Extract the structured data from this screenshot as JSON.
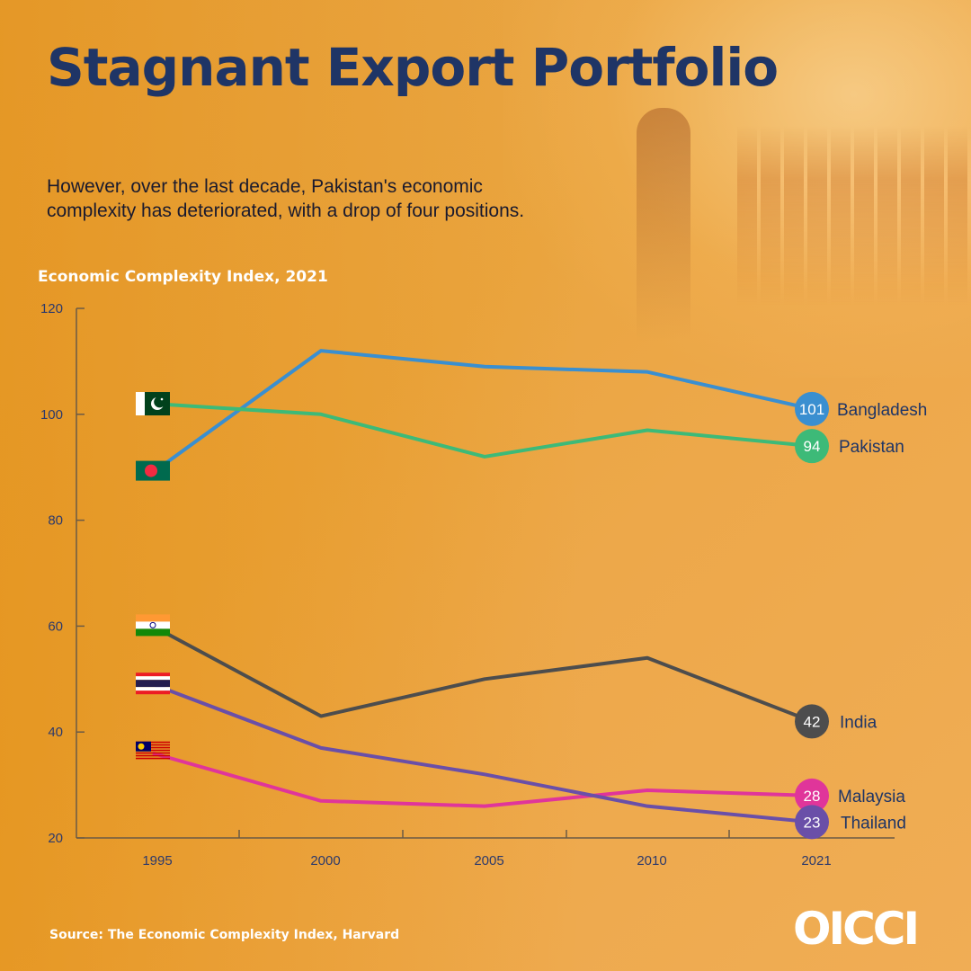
{
  "header": {
    "title": "Stagnant Export Portfolio",
    "subtitle_line1": "However, over the last decade, Pakistan's economic",
    "subtitle_line2": "complexity has deteriorated, with a drop of four positions."
  },
  "footer": {
    "source": "Source: The Economic Complexity Index, Harvard",
    "logo": "OICCI"
  },
  "chart_data": {
    "type": "line",
    "title": "Economic Complexity Index, 2021",
    "xlabel": "",
    "ylabel": "",
    "categories": [
      "1995",
      "2000",
      "2005",
      "2010",
      "2021"
    ],
    "ylim": [
      20,
      120
    ],
    "yticks": [
      20,
      40,
      60,
      80,
      100,
      120
    ],
    "grid": false,
    "series": [
      {
        "name": "Bangladesh",
        "color": "#3a8fd0",
        "flag": "bangladesh",
        "values": [
          89,
          112,
          109,
          108,
          101
        ]
      },
      {
        "name": "Pakistan",
        "color": "#3dba78",
        "flag": "pakistan",
        "values": [
          102,
          100,
          92,
          97,
          94
        ]
      },
      {
        "name": "India",
        "color": "#4d4d4d",
        "flag": "india",
        "values": [
          60,
          43,
          50,
          54,
          42
        ]
      },
      {
        "name": "Malaysia",
        "color": "#e0359a",
        "flag": "malaysia",
        "values": [
          36,
          27,
          26,
          29,
          28
        ]
      },
      {
        "name": "Thailand",
        "color": "#6a4fa8",
        "flag": "thailand",
        "values": [
          49,
          37,
          32,
          26,
          23
        ]
      }
    ]
  }
}
